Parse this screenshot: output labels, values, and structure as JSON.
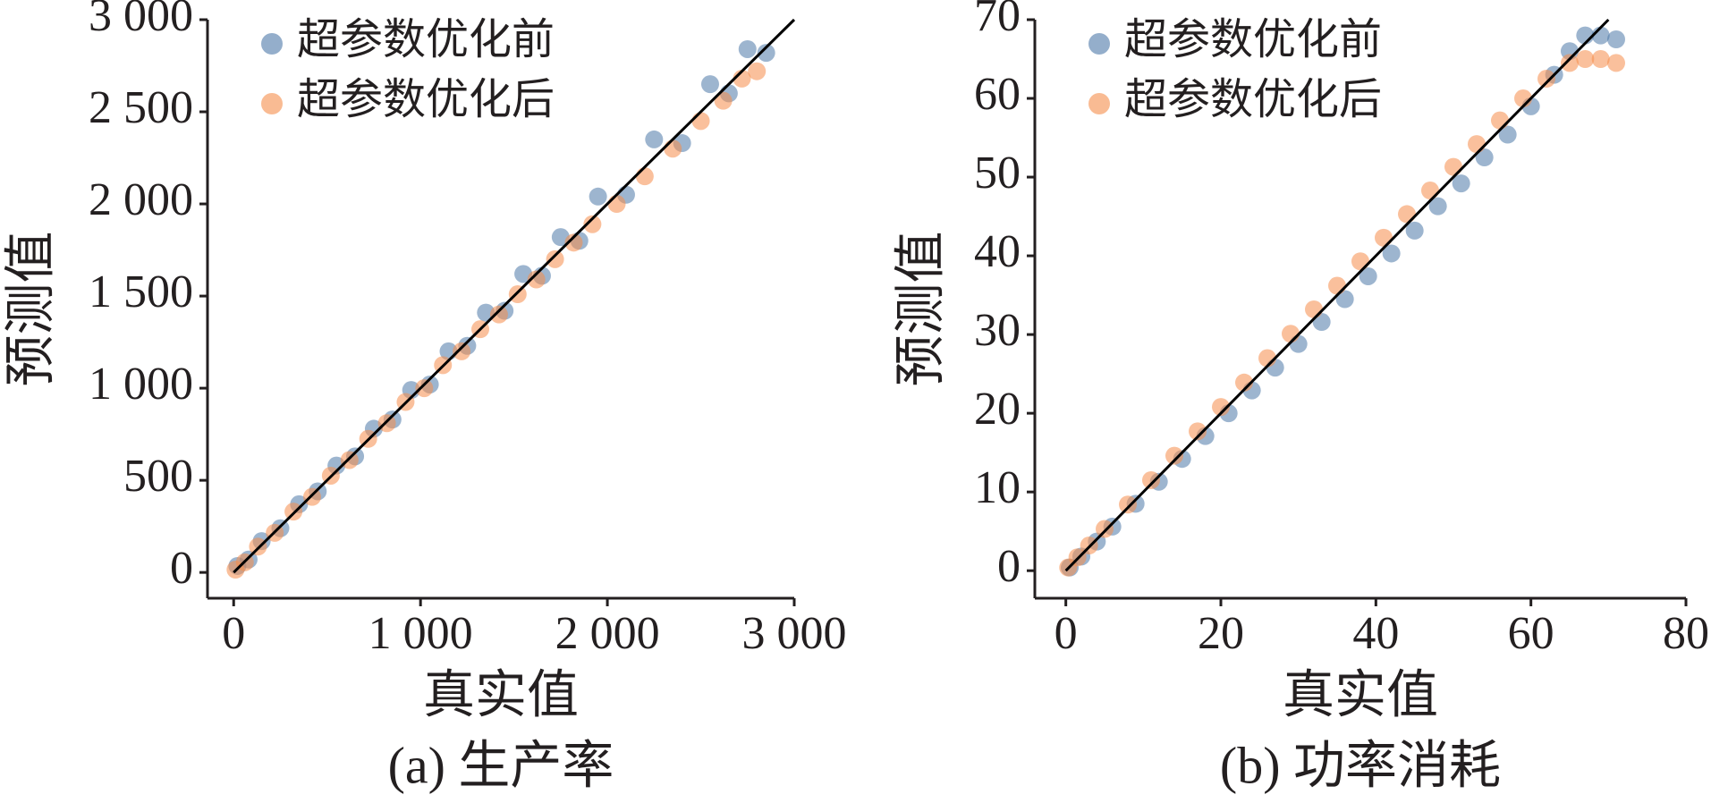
{
  "chart_data": [
    {
      "type": "scatter",
      "caption": "(a) 生产率",
      "xlabel": "真实值",
      "ylabel": "预测值",
      "xlim": [
        -140,
        3000
      ],
      "ylim": [
        -140,
        3000
      ],
      "xticks": [
        0,
        {
          "value": 1000,
          "label": "1 000"
        },
        {
          "value": 2000,
          "label": "2 000"
        },
        {
          "value": 3000,
          "label": "3 000"
        }
      ],
      "yticks": [
        0,
        500,
        {
          "value": 1000,
          "label": "1 000"
        },
        {
          "value": 1500,
          "label": "1 500"
        },
        {
          "value": 2000,
          "label": "2 000"
        },
        {
          "value": 2500,
          "label": "2 500"
        },
        {
          "value": 3000,
          "label": "3 000"
        }
      ],
      "legend": "upper left",
      "series": [
        {
          "name": "超参数优化前",
          "color": "#4c78a8",
          "x": [
            20,
            80,
            150,
            250,
            350,
            450,
            550,
            650,
            750,
            850,
            950,
            1050,
            1150,
            1250,
            1350,
            1450,
            1550,
            1650,
            1750,
            1850,
            1950,
            2100,
            2250,
            2400,
            2550,
            2650,
            2750,
            2850
          ],
          "values": [
            35,
            70,
            170,
            240,
            370,
            440,
            580,
            630,
            780,
            830,
            990,
            1020,
            1200,
            1230,
            1410,
            1420,
            1620,
            1610,
            1820,
            1800,
            2040,
            2050,
            2350,
            2330,
            2650,
            2600,
            2840,
            2820
          ]
        },
        {
          "name": "超参数优化后",
          "color": "#f58d4b",
          "x": [
            10,
            60,
            130,
            220,
            320,
            420,
            520,
            620,
            720,
            820,
            920,
            1020,
            1120,
            1220,
            1320,
            1420,
            1520,
            1620,
            1720,
            1820,
            1920,
            2050,
            2200,
            2350,
            2500,
            2620,
            2720,
            2800
          ],
          "values": [
            15,
            55,
            140,
            215,
            330,
            410,
            525,
            610,
            725,
            810,
            925,
            1000,
            1125,
            1200,
            1320,
            1400,
            1510,
            1590,
            1700,
            1790,
            1890,
            2000,
            2150,
            2300,
            2450,
            2560,
            2680,
            2720
          ]
        },
        {
          "mode": "line",
          "color": "#000000",
          "x": [
            0,
            3000
          ],
          "values": [
            0,
            3000
          ]
        }
      ]
    },
    {
      "type": "scatter",
      "caption": "(b) 功率消耗",
      "xlabel": "真实值",
      "ylabel": "预测值",
      "xlim": [
        -4,
        80
      ],
      "ylim": [
        -3.5,
        70
      ],
      "xticks": [
        0,
        20,
        40,
        60,
        80
      ],
      "yticks": [
        0,
        10,
        20,
        30,
        40,
        50,
        60,
        70
      ],
      "legend": "upper left",
      "series": [
        {
          "name": "超参数优化前",
          "color": "#4c78a8",
          "x": [
            0.5,
            2,
            4,
            6,
            9,
            12,
            15,
            18,
            21,
            24,
            27,
            30,
            33,
            36,
            39,
            42,
            45,
            48,
            51,
            54,
            57,
            60,
            63,
            65,
            67,
            69,
            71
          ],
          "values": [
            0.4,
            1.8,
            3.7,
            5.6,
            8.5,
            11.3,
            14.2,
            17.1,
            20,
            22.9,
            25.8,
            28.8,
            31.6,
            34.5,
            37.4,
            40.3,
            43.2,
            46.3,
            49.2,
            52.5,
            55.4,
            59,
            63,
            66,
            68,
            68,
            67.5
          ]
        },
        {
          "name": "超参数优化后",
          "color": "#f58d4b",
          "x": [
            0.3,
            1.5,
            3,
            5,
            8,
            11,
            14,
            17,
            20,
            23,
            26,
            29,
            32,
            35,
            38,
            41,
            44,
            47,
            50,
            53,
            56,
            59,
            62,
            65,
            67,
            69,
            71
          ],
          "values": [
            0.4,
            1.7,
            3.2,
            5.3,
            8.4,
            11.5,
            14.6,
            17.7,
            20.8,
            23.9,
            27,
            30.1,
            33.2,
            36.2,
            39.3,
            42.3,
            45.3,
            48.3,
            51.3,
            54.2,
            57.2,
            60,
            62.5,
            64.5,
            65,
            65,
            64.5
          ]
        },
        {
          "mode": "line",
          "color": "#000000",
          "x": [
            0,
            70
          ],
          "values": [
            0,
            70
          ]
        }
      ]
    }
  ]
}
